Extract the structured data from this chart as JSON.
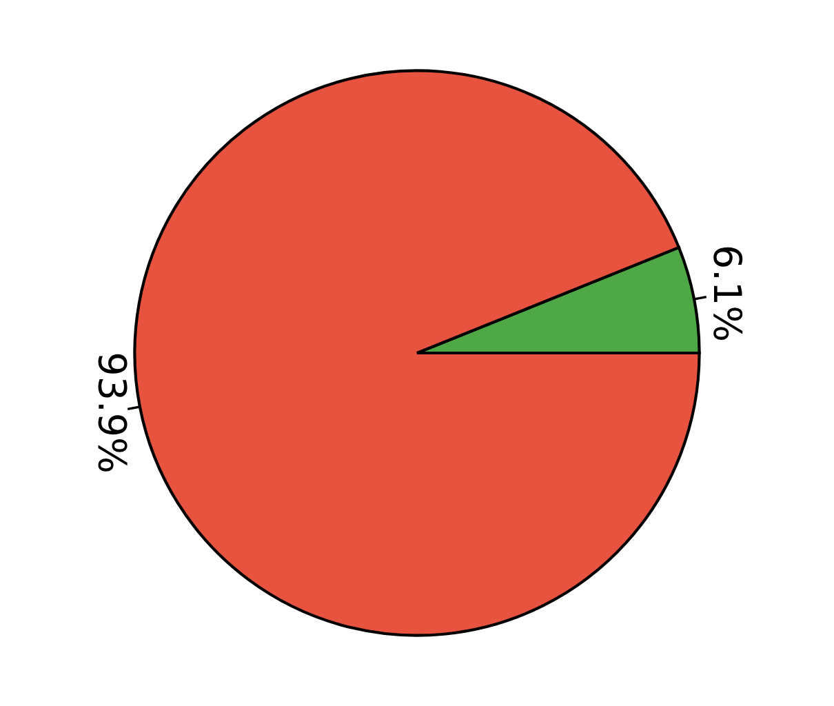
{
  "chart_data": {
    "type": "pie",
    "categories": [
      null,
      null
    ],
    "values": [
      6.1,
      93.9
    ],
    "colors": [
      "#4ea845",
      "#e8533f"
    ],
    "data_labels": true,
    "value_labels": [
      "6.1%",
      "93.9%"
    ],
    "legend": false
  }
}
